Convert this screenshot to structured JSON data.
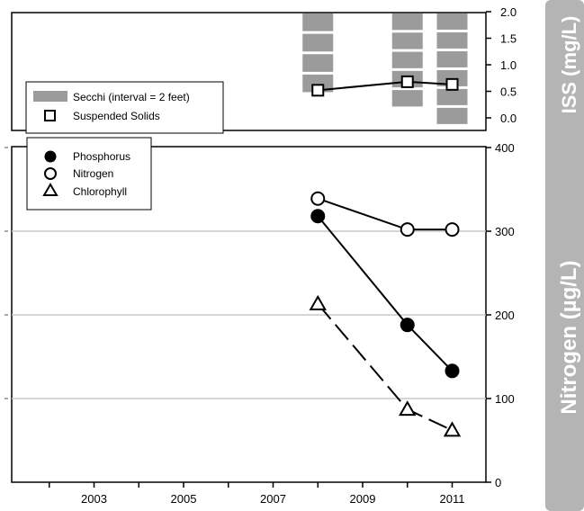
{
  "colors": {
    "secchi_bar": "#9b9b9b",
    "gridline": "#c8c8c8",
    "side_panel": "#b4b4b4",
    "ink": "#000000"
  },
  "chart_data": [
    {
      "type": "bar+line",
      "ylabel": "ISS (mg/L)",
      "xlim": [
        2001,
        2011.8
      ],
      "ylim": [
        -0.15,
        2.0
      ],
      "yticks": [
        "2.0",
        "1.5",
        "1.0",
        "0.5",
        "0.0"
      ],
      "ytick_values": [
        2.0,
        1.5,
        1.0,
        0.5,
        0.0
      ],
      "legend": {
        "placement": "bottom-left",
        "secchi_label": "Secchi (interval = 2 feet)",
        "solids_label": "Suspended Solids"
      },
      "secchi": {
        "name": "Secchi (interval = 2 feet)",
        "x": [
          2008,
          2010,
          2011
        ],
        "segments": [
          4,
          5,
          6
        ],
        "bottom": [
          0.45,
          0.18,
          -0.15
        ]
      },
      "series": [
        {
          "name": "Suspended Solids",
          "marker": "square",
          "x": [
            2008,
            2010,
            2011
          ],
          "y": [
            0.52,
            0.68,
            0.63
          ]
        }
      ]
    },
    {
      "type": "line",
      "ylabel": "Nitrogen (µg/L)",
      "xlim": [
        2001,
        2011.8
      ],
      "ylim": [
        0,
        400
      ],
      "x_ticks": [
        "2003",
        "2005",
        "2007",
        "2009",
        "2011"
      ],
      "x_tick_values": [
        2003,
        2005,
        2007,
        2009,
        2011
      ],
      "yticks": [
        "400",
        "300",
        "200",
        "100",
        "0"
      ],
      "ytick_values": [
        400,
        300,
        200,
        100,
        0
      ],
      "grid": true,
      "legend": {
        "placement": "top-left",
        "phosphorus_label": "Phosphorus",
        "nitrogen_label": "Nitrogen",
        "chlorophyll_label": "Chlorophyll"
      },
      "series": [
        {
          "name": "Phosphorus",
          "marker": "filled-circle",
          "dash": "solid",
          "x": [
            2008,
            2010,
            2011
          ],
          "y": [
            318,
            188,
            133
          ]
        },
        {
          "name": "Nitrogen",
          "marker": "open-circle",
          "dash": "solid",
          "x": [
            2008,
            2010,
            2011
          ],
          "y": [
            339,
            302,
            302
          ]
        },
        {
          "name": "Chlorophyll",
          "marker": "open-triangle",
          "dash": "dashed",
          "x": [
            2008,
            2010,
            2011
          ],
          "y": [
            213,
            87,
            62
          ]
        }
      ]
    }
  ]
}
